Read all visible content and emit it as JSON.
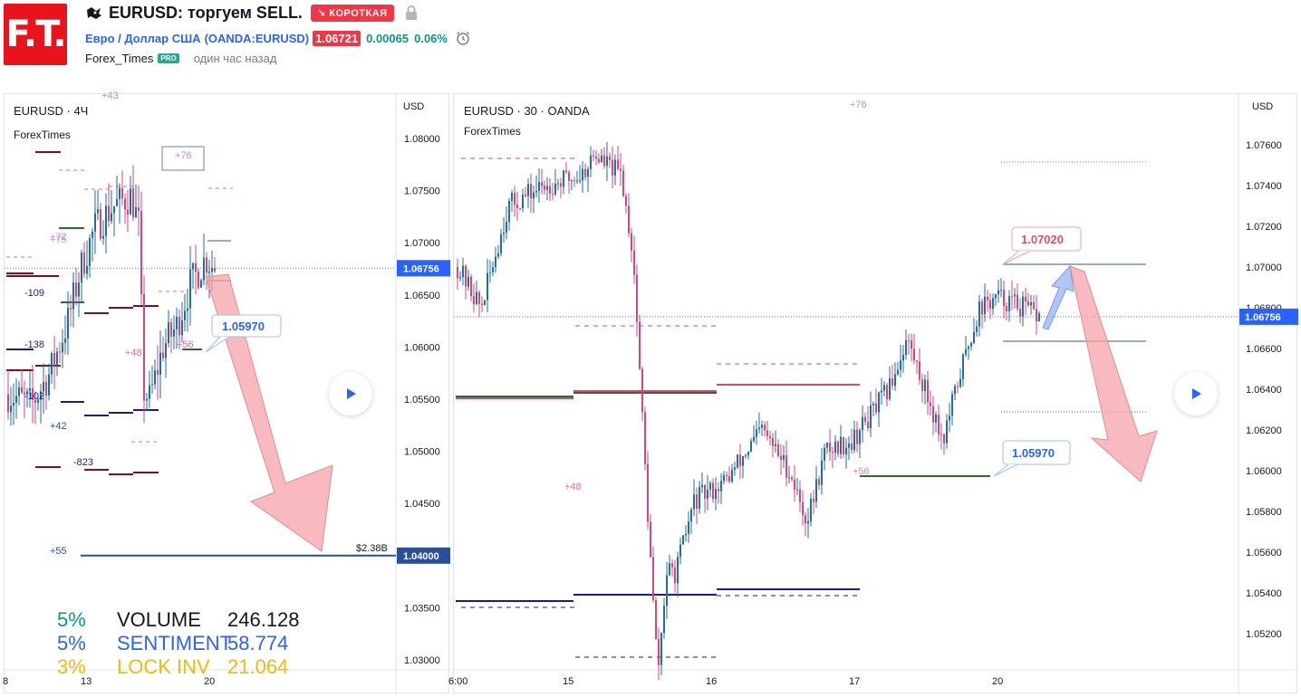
{
  "header": {
    "logo_text": "F.T.",
    "title": "EURUSD: торгуем SELL.",
    "direction_badge": "↘ КОРОТКАЯ",
    "symbol_name": "Евро / Доллар США",
    "symbol_ticker": "(OANDA:EURUSD)",
    "price": "1.06721",
    "change_abs": "0.00065",
    "change_pct": "0.06%",
    "author": "Forex_Times",
    "author_badge": "PRO",
    "time_ago": "один час назад"
  },
  "left_chart": {
    "title": "EURUSD · 4Ч",
    "subtitle": "ForexTimes",
    "currency": "USD",
    "price_ticks": [
      "1.08000",
      "1.07500",
      "1.07000",
      "1.06500",
      "1.06000",
      "1.05500",
      "1.05000",
      "1.04500",
      "1.04000",
      "1.03500",
      "1.03000"
    ],
    "current_price": "1.06756",
    "target_price": "1.04000",
    "target_label": "$2.38B",
    "callout": "1.05970",
    "time_ticks": [
      "8",
      "13",
      "20"
    ],
    "annotations": [
      "+43",
      "+76",
      "+72",
      "+75",
      "-109",
      "-138",
      "+48",
      "+56",
      "-102",
      "+42",
      "-823",
      "+55"
    ],
    "stats": [
      {
        "pct": "5%",
        "label": "VOLUME",
        "value": "246.128",
        "color": "#089981"
      },
      {
        "pct": "5%",
        "label": "SENTIMENT",
        "value": "58.774",
        "color": "#2962ff"
      },
      {
        "pct": "3%",
        "label": "LOCK INV",
        "value": "21.064",
        "color": "#f0b90b"
      }
    ]
  },
  "right_chart": {
    "title": "EURUSD · 30 · OANDA",
    "subtitle": "ForexTimes",
    "currency": "USD",
    "price_ticks": [
      "1.07600",
      "1.07400",
      "1.07200",
      "1.07000",
      "1.06800",
      "1.06600",
      "1.06400",
      "1.06200",
      "1.06000",
      "1.05800",
      "1.05600",
      "1.05400",
      "1.05200"
    ],
    "current_price": "1.06756",
    "callout_top": "1.07020",
    "callout_bottom": "1.05970",
    "time_ticks": [
      "6:00",
      "15",
      "16",
      "17",
      "20"
    ],
    "annotations": [
      "+76",
      "+48",
      "+56"
    ]
  },
  "colors": {
    "bull": "#1e6ea8",
    "bear": "#d8457c",
    "arrow": "#f5a3a8",
    "accent": "#2962ff",
    "short": "#f23645"
  },
  "icons": {
    "direction": "bear-icon",
    "lock": "lock-icon",
    "alarm": "alarm-clock-icon",
    "play": "play-icon"
  }
}
